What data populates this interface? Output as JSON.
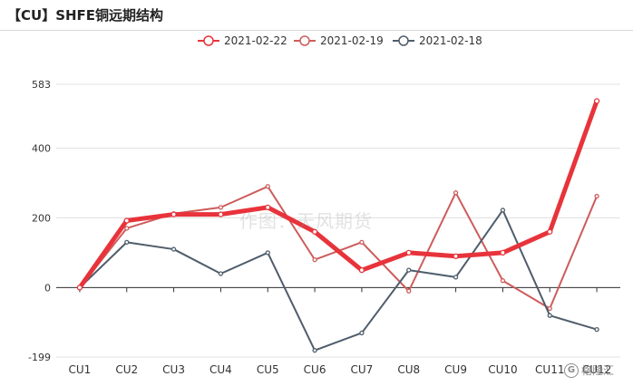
{
  "title": "【CU】SHFE铜远期结构",
  "watermark": "作图：天风期货",
  "corner_logo": {
    "glyph": "G",
    "text": "格隆汇"
  },
  "colors": {
    "2021-02-22": "#e8333b",
    "2021-02-19": "#cd5c5c",
    "2021-02-18": "#4f5d6b",
    "axis": "#333333",
    "grid": "#e0e0e0",
    "title_rule": "#d8d8d8"
  },
  "chart_data": {
    "type": "line",
    "categories": [
      "CU1",
      "CU2",
      "CU3",
      "CU4",
      "CU5",
      "CU6",
      "CU7",
      "CU8",
      "CU9",
      "CU10",
      "CU11",
      "CU12"
    ],
    "x_tick_labels": [
      "CU1",
      "CU2",
      "CU3",
      "CU4",
      "CU5",
      "CU6",
      "CU7",
      "CU8",
      "CU9",
      "CU10",
      "CU11",
      "CU12"
    ],
    "series": [
      {
        "name": "2021-02-22",
        "values": [
          0,
          192,
          210,
          210,
          230,
          160,
          50,
          100,
          90,
          100,
          160,
          535
        ],
        "line": "thick"
      },
      {
        "name": "2021-02-19",
        "values": [
          0,
          170,
          212,
          230,
          290,
          80,
          130,
          -10,
          272,
          20,
          -60,
          262
        ],
        "line": "thin"
      },
      {
        "name": "2021-02-18",
        "values": [
          0,
          130,
          110,
          40,
          100,
          -180,
          -130,
          50,
          30,
          222,
          -80,
          -120
        ],
        "line": "thin"
      }
    ],
    "ylim": [
      -199,
      583
    ],
    "y_ticks": [
      -199,
      0,
      200,
      400,
      583
    ],
    "grid": true,
    "legend_position": "top-center"
  }
}
